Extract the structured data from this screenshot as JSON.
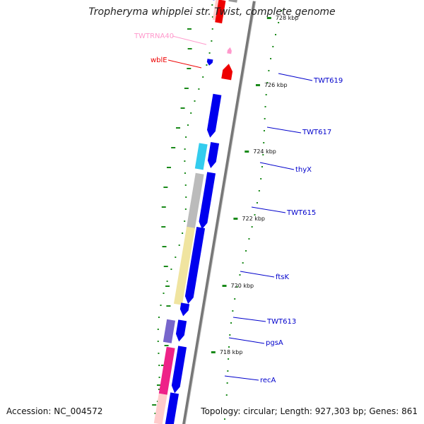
{
  "title": "Tropheryma whipplei str. Twist, complete genome",
  "accession": "Accession: NC_004572",
  "summary": "Topology: circular; Length: 927,303 bp; Genes: 861",
  "colors": {
    "backbone": "#888888",
    "gc_marks": "#1a8a1a",
    "cds_forward": "#0000ee",
    "trna": "#ff99cc",
    "rrna": "#ee0000"
  },
  "ticks": [
    {
      "label": "728 kbp"
    },
    {
      "label": "726 kbp"
    },
    {
      "label": "724 kbp"
    },
    {
      "label": "722 kbp"
    },
    {
      "label": "720 kbp"
    },
    {
      "label": "718 kbp"
    }
  ],
  "left_labels": [
    {
      "name": "TWTRNA40",
      "color": "#ff99cc"
    },
    {
      "name": "wblE",
      "color": "#ee0000"
    }
  ],
  "right_labels": [
    {
      "name": "TWT619",
      "color": "#0000cc"
    },
    {
      "name": "TWT617",
      "color": "#0000cc"
    },
    {
      "name": "thyX",
      "color": "#0000cc"
    },
    {
      "name": "TWT615",
      "color": "#0000cc"
    },
    {
      "name": "ftsK",
      "color": "#0000cc"
    },
    {
      "name": "TWT613",
      "color": "#0000cc"
    },
    {
      "name": "pgsA",
      "color": "#0000cc"
    },
    {
      "name": "recA",
      "color": "#0000cc"
    }
  ],
  "category_colors": [
    "#0000ee",
    "#33ccee",
    "#bbbbbb",
    "#f0e4a0",
    "#7766cc",
    "#ee2288",
    "#ffcccc",
    "#ff99cc",
    "#ee0000",
    "#999999"
  ]
}
